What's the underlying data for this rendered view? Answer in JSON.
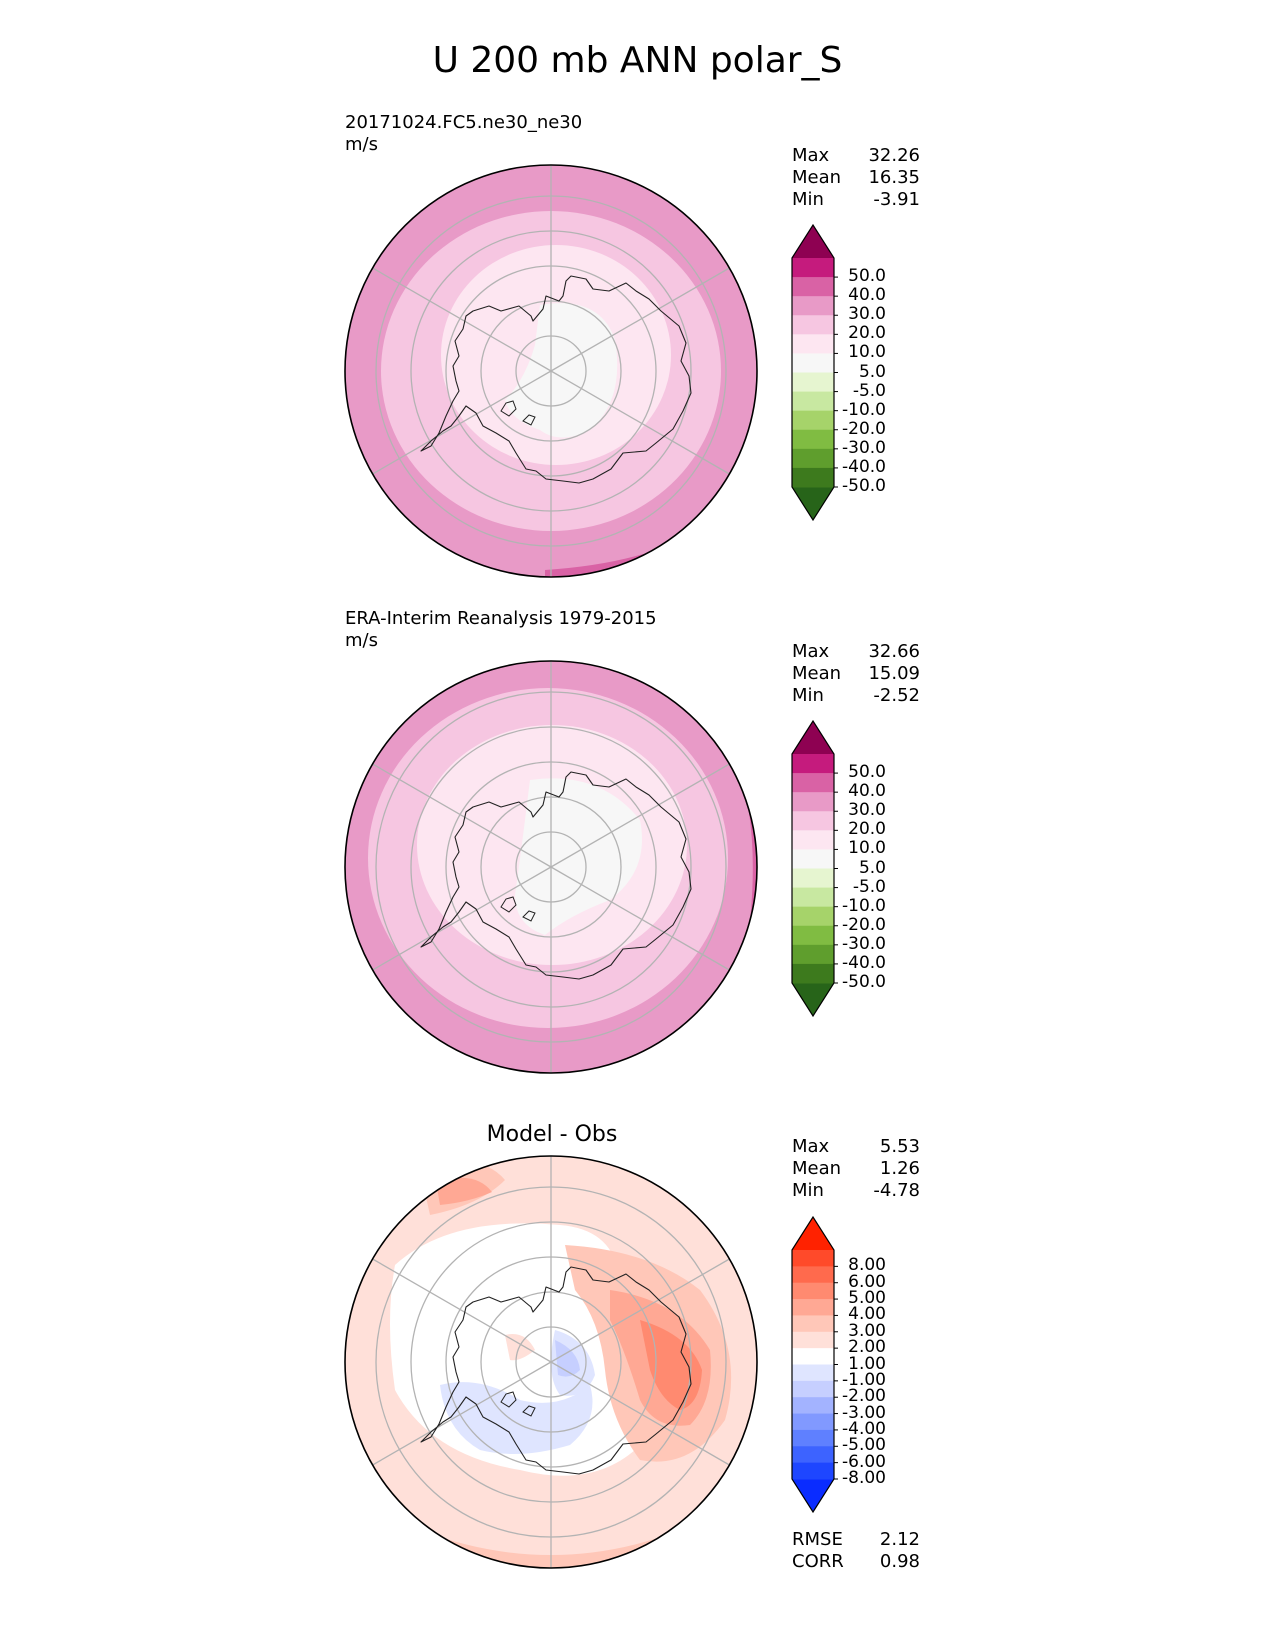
{
  "title": "U 200 mb ANN polar_S",
  "colors": {
    "test_levels": [
      "#276419",
      "#4d9221",
      "#7fbc41",
      "#b8e186",
      "#e6f5d0",
      "#f7f7f7",
      "#fde0ef",
      "#f1b6da",
      "#de77ae",
      "#c51b7d",
      "#8e0152"
    ],
    "test_fills": [
      "#276419",
      "#3d7a1d",
      "#5f9e2d",
      "#80bc42",
      "#a6d36a",
      "#c8e8a1",
      "#e6f5d0",
      "#f7f7f7",
      "#fde6f1",
      "#f6c6e1",
      "#e89ac7",
      "#d962a5",
      "#c51b7d",
      "#8e0152"
    ],
    "diff_fills": [
      "#0a2cff",
      "#1e46ff",
      "#3d63ff",
      "#5f80ff",
      "#8199ff",
      "#a3b3ff",
      "#c6cfff",
      "#dfe5ff",
      "#ffffff",
      "#ffe0d9",
      "#ffc7b8",
      "#ffa894",
      "#ff8a70",
      "#ff6a4d",
      "#ff4a2a",
      "#ff2200"
    ]
  },
  "panels": [
    {
      "id": "test",
      "title_line1": "20171024.FC5.ne30_ne30",
      "title_line2": "m/s",
      "stats": {
        "max_label": "Max",
        "max": "32.26",
        "mean_label": "Mean",
        "mean": "16.35",
        "min_label": "Min",
        "min": "-3.91"
      },
      "colorbar_ticks": [
        "50.0",
        "40.0",
        "30.0",
        "20.0",
        "10.0",
        "5.0",
        "-5.0",
        "-10.0",
        "-20.0",
        "-30.0",
        "-40.0",
        "-50.0"
      ]
    },
    {
      "id": "ref",
      "title_line1": "ERA-Interim Reanalysis 1979-2015",
      "title_line2": "m/s",
      "stats": {
        "max_label": "Max",
        "max": "32.66",
        "mean_label": "Mean",
        "mean": "15.09",
        "min_label": "Min",
        "min": "-2.52"
      },
      "colorbar_ticks": [
        "50.0",
        "40.0",
        "30.0",
        "20.0",
        "10.0",
        "5.0",
        "-5.0",
        "-10.0",
        "-20.0",
        "-30.0",
        "-40.0",
        "-50.0"
      ]
    },
    {
      "id": "diff",
      "title_line1": "Model - Obs",
      "stats": {
        "max_label": "Max",
        "max": "5.53",
        "mean_label": "Mean",
        "mean": "1.26",
        "min_label": "Min",
        "min": "-4.78"
      },
      "colorbar_ticks": [
        "8.00",
        "6.00",
        "5.00",
        "4.00",
        "3.00",
        "2.00",
        "1.00",
        "-1.00",
        "-2.00",
        "-3.00",
        "-4.00",
        "-5.00",
        "-6.00",
        "-8.00"
      ],
      "metrics": {
        "rmse_label": "RMSE",
        "rmse": "2.12",
        "corr_label": "CORR",
        "corr": "0.98"
      }
    }
  ],
  "chart_data": {
    "type": "heatmap",
    "title": "U 200 mb ANN polar_S",
    "projection": "south polar stereographic",
    "variable": "U 200 mb",
    "units": "m/s",
    "maps": [
      {
        "name": "20171024.FC5.ne30_ne30",
        "max": 32.26,
        "mean": 16.35,
        "min": -3.91
      },
      {
        "name": "ERA-Interim Reanalysis 1979-2015",
        "max": 32.66,
        "mean": 15.09,
        "min": -2.52
      },
      {
        "name": "Model - Obs",
        "max": 5.53,
        "mean": 1.26,
        "min": -4.78,
        "rmse": 2.12,
        "corr": 0.98
      }
    ],
    "test_levels": [
      -50,
      -40,
      -30,
      -20,
      -10,
      -5,
      5,
      10,
      20,
      30,
      40,
      50
    ],
    "diff_levels": [
      -8,
      -6,
      -5,
      -4,
      -3,
      -2,
      -1,
      1,
      2,
      3,
      4,
      5,
      6,
      8
    ]
  }
}
